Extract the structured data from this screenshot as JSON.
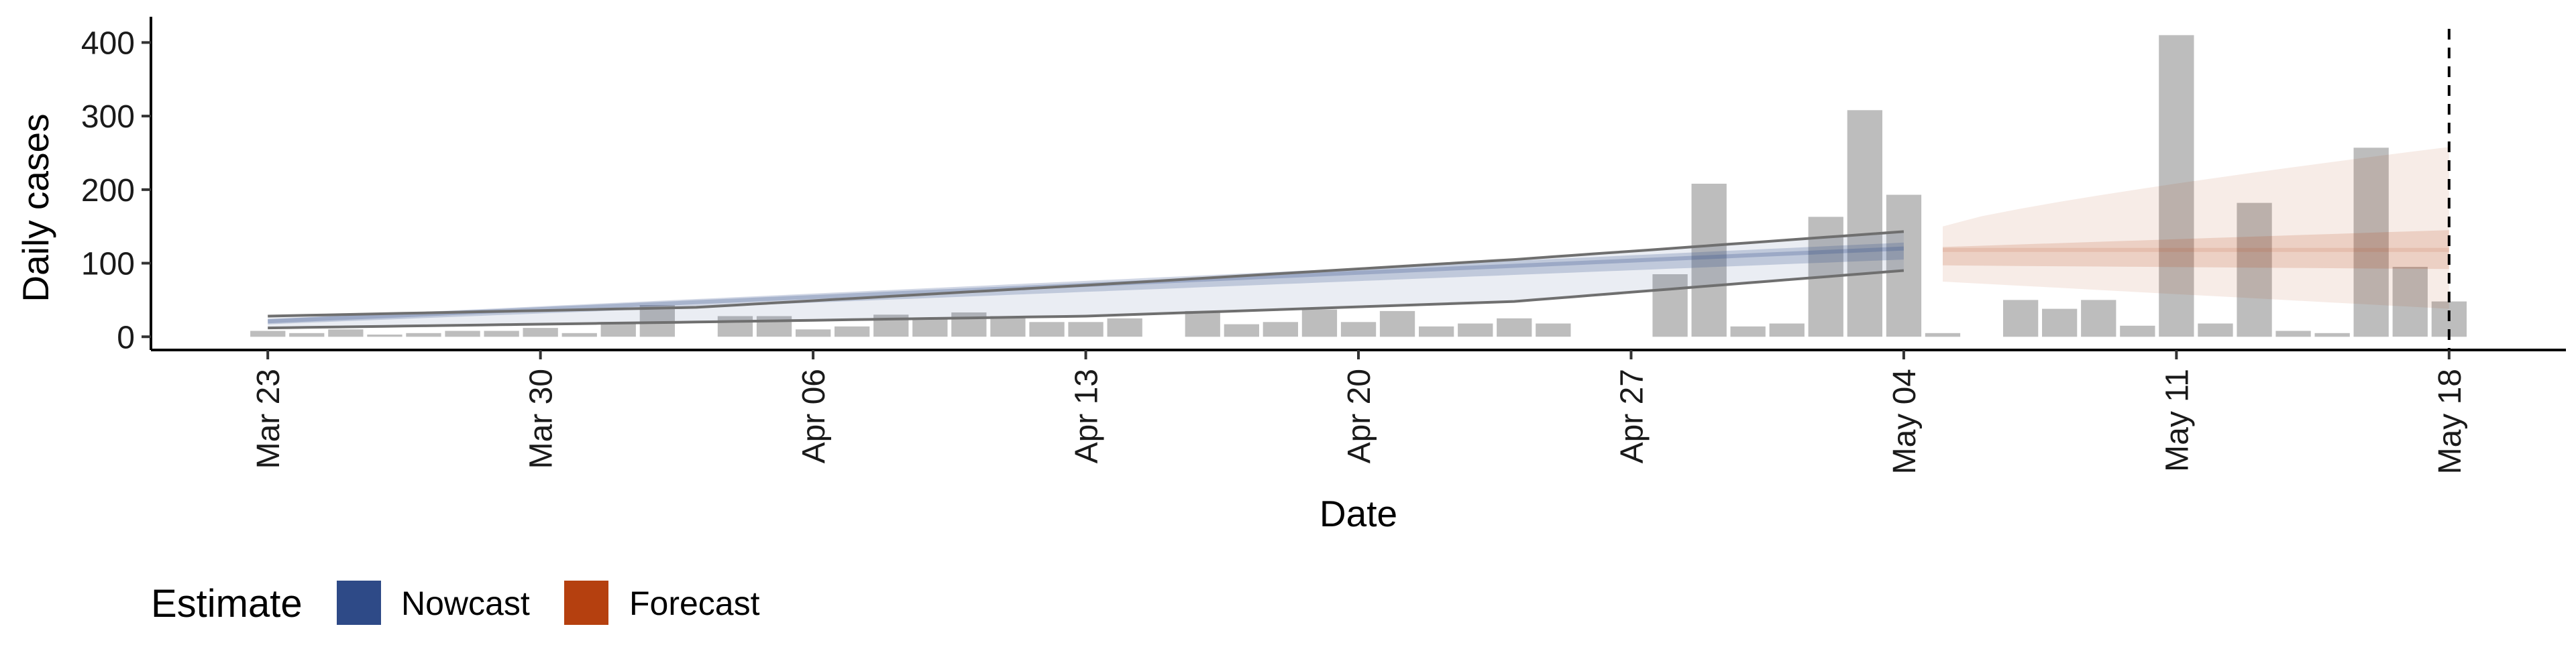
{
  "chart_data": {
    "type": "bar",
    "title": "",
    "xlabel": "Date",
    "ylabel": "Daily cases",
    "x_range": [
      "2020-03-20",
      "2020-05-21"
    ],
    "ylim": [
      -18,
      435
    ],
    "y_ticks": [
      0,
      100,
      200,
      300,
      400
    ],
    "x_ticks": [
      {
        "date": "2020-03-23",
        "label": "Mar 23"
      },
      {
        "date": "2020-03-30",
        "label": "Mar 30"
      },
      {
        "date": "2020-04-06",
        "label": "Apr 06"
      },
      {
        "date": "2020-04-13",
        "label": "Apr 13"
      },
      {
        "date": "2020-04-20",
        "label": "Apr 20"
      },
      {
        "date": "2020-04-27",
        "label": "Apr 27"
      },
      {
        "date": "2020-05-04",
        "label": "May 04"
      },
      {
        "date": "2020-05-11",
        "label": "May 11"
      },
      {
        "date": "2020-05-18",
        "label": "May 18"
      }
    ],
    "grid": false,
    "legend_position": "bottom-left",
    "legend_title": "Estimate",
    "bars": {
      "color": "#bdbdbd",
      "start_date": "2020-03-23",
      "values": [
        8,
        5,
        10,
        3,
        5,
        8,
        8,
        12,
        5,
        20,
        43,
        0,
        28,
        28,
        10,
        14,
        30,
        25,
        33,
        28,
        20,
        20,
        25,
        0,
        35,
        17,
        20,
        37,
        20,
        35,
        14,
        18,
        25,
        18,
        0,
        0,
        85,
        208,
        14,
        18,
        163,
        308,
        193,
        5,
        0,
        50,
        38,
        50,
        15,
        410,
        18,
        182,
        8,
        5,
        257,
        95,
        48
      ]
    },
    "series": [
      {
        "name": "Nowcast",
        "color": "#2e4a87",
        "start_date": "2020-03-23",
        "end_date": "2020-05-04",
        "median_start": 21,
        "median_end": 120,
        "inner_lower_start": 17,
        "inner_lower_end": 105,
        "inner_upper_start": 24,
        "inner_upper_end": 128,
        "outer_lower": [
          [
            0,
            12
          ],
          [
            11,
            20
          ],
          [
            21,
            28
          ],
          [
            32,
            48
          ],
          [
            42,
            90
          ]
        ],
        "outer_upper": [
          [
            0,
            28
          ],
          [
            11,
            40
          ],
          [
            21,
            70
          ],
          [
            32,
            105
          ],
          [
            36,
            120
          ],
          [
            42,
            143
          ]
        ]
      },
      {
        "name": "Forecast",
        "color": "#b5400f",
        "start_date": "2020-05-05",
        "end_date": "2020-05-18",
        "median": 118,
        "inner_lower_start": 97,
        "inner_lower_end": 92,
        "inner_upper_start": 122,
        "inner_upper_end": 145,
        "outer_lower_start": 75,
        "outer_lower_end": 38,
        "outer_upper_start": 150,
        "outer_upper_end": 258
      }
    ],
    "vline_date": "2020-05-18"
  }
}
